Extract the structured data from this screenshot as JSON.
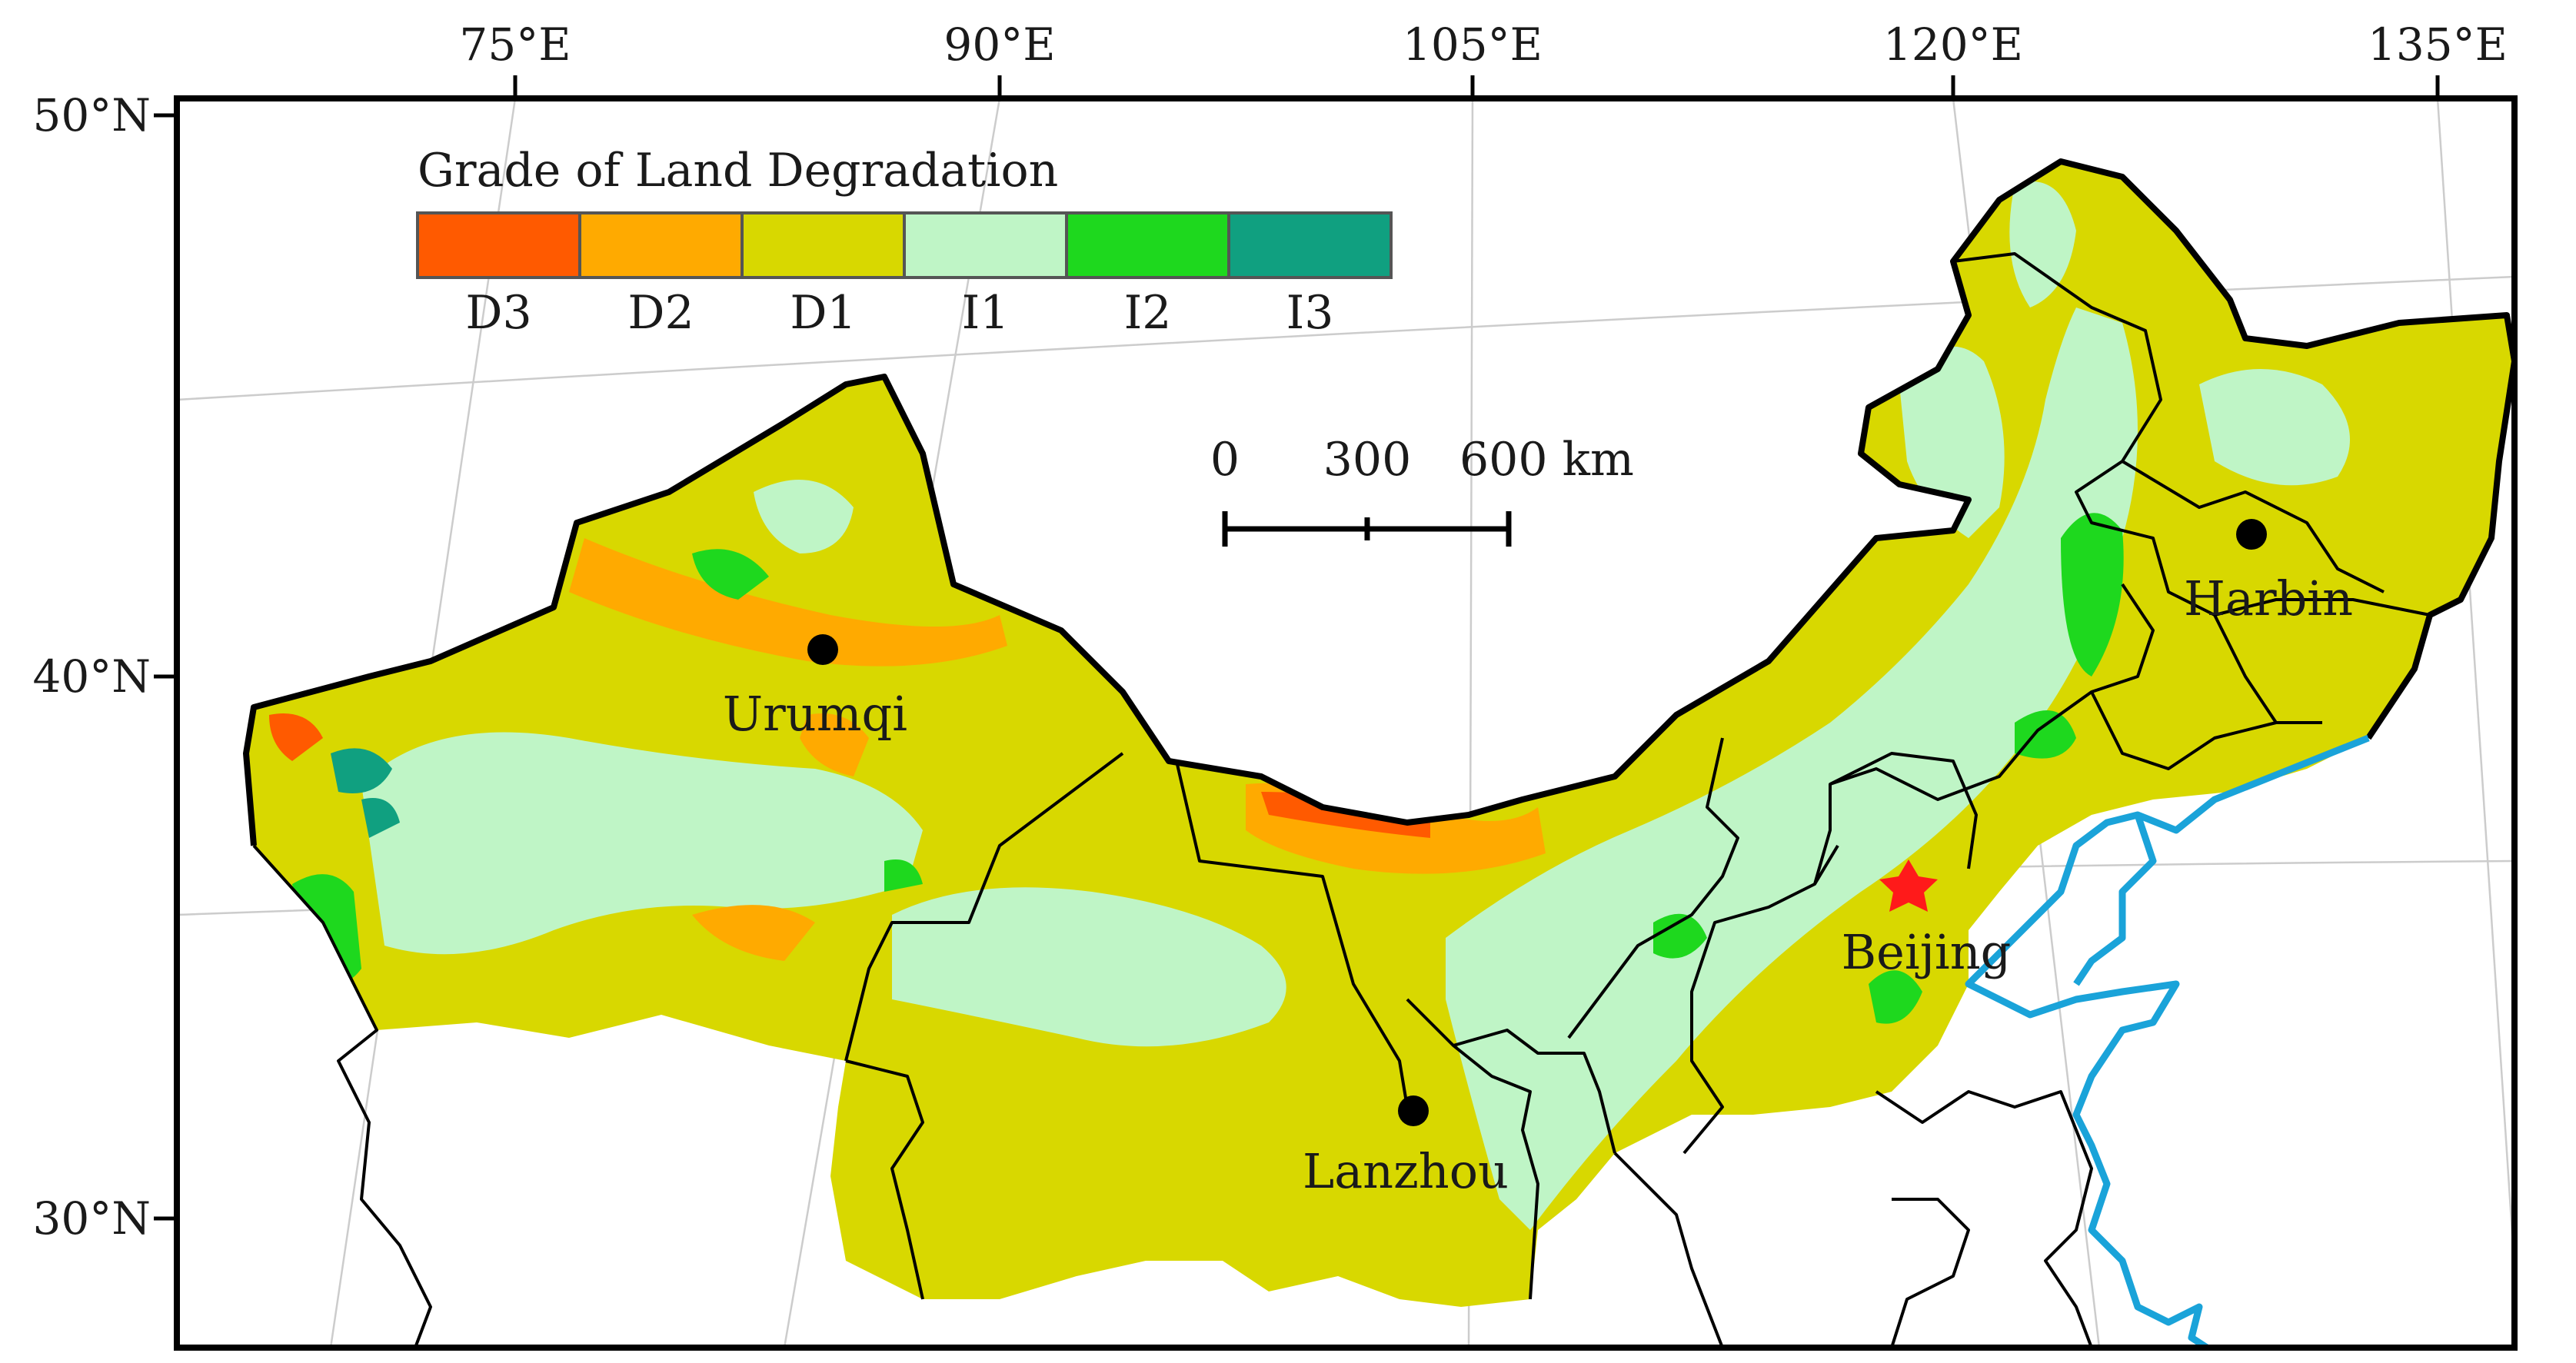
{
  "colors": {
    "D3": "#ff5a00",
    "D2": "#ffaa00",
    "D1": "#d8d800",
    "I1": "#bff5c6",
    "I2": "#1ed81e",
    "I3": "#10a080",
    "water": "#1aa3d9",
    "city_marker": "#000000",
    "capital_star": "#ff1a1a"
  },
  "longitude_labels": [
    "75°E",
    "90°E",
    "105°E",
    "120°E",
    "135°E"
  ],
  "latitude_labels": [
    "50°N",
    "40°N",
    "30°N"
  ],
  "legend": {
    "title": "Grade of Land Degradation",
    "classes": [
      {
        "label": "D3",
        "color": "#ff5a00"
      },
      {
        "label": "D2",
        "color": "#ffaa00"
      },
      {
        "label": "D1",
        "color": "#d8d800"
      },
      {
        "label": "I1",
        "color": "#bff5c6"
      },
      {
        "label": "I2",
        "color": "#1ed81e"
      },
      {
        "label": "I3",
        "color": "#10a080"
      }
    ]
  },
  "scale_bar": {
    "ticks": [
      "0",
      "300",
      "600 km"
    ]
  },
  "cities": [
    {
      "name": "Urumqi",
      "marker": "dot"
    },
    {
      "name": "Lanzhou",
      "marker": "dot"
    },
    {
      "name": "Beijing",
      "marker": "star"
    },
    {
      "name": "Harbin",
      "marker": "dot"
    }
  ]
}
